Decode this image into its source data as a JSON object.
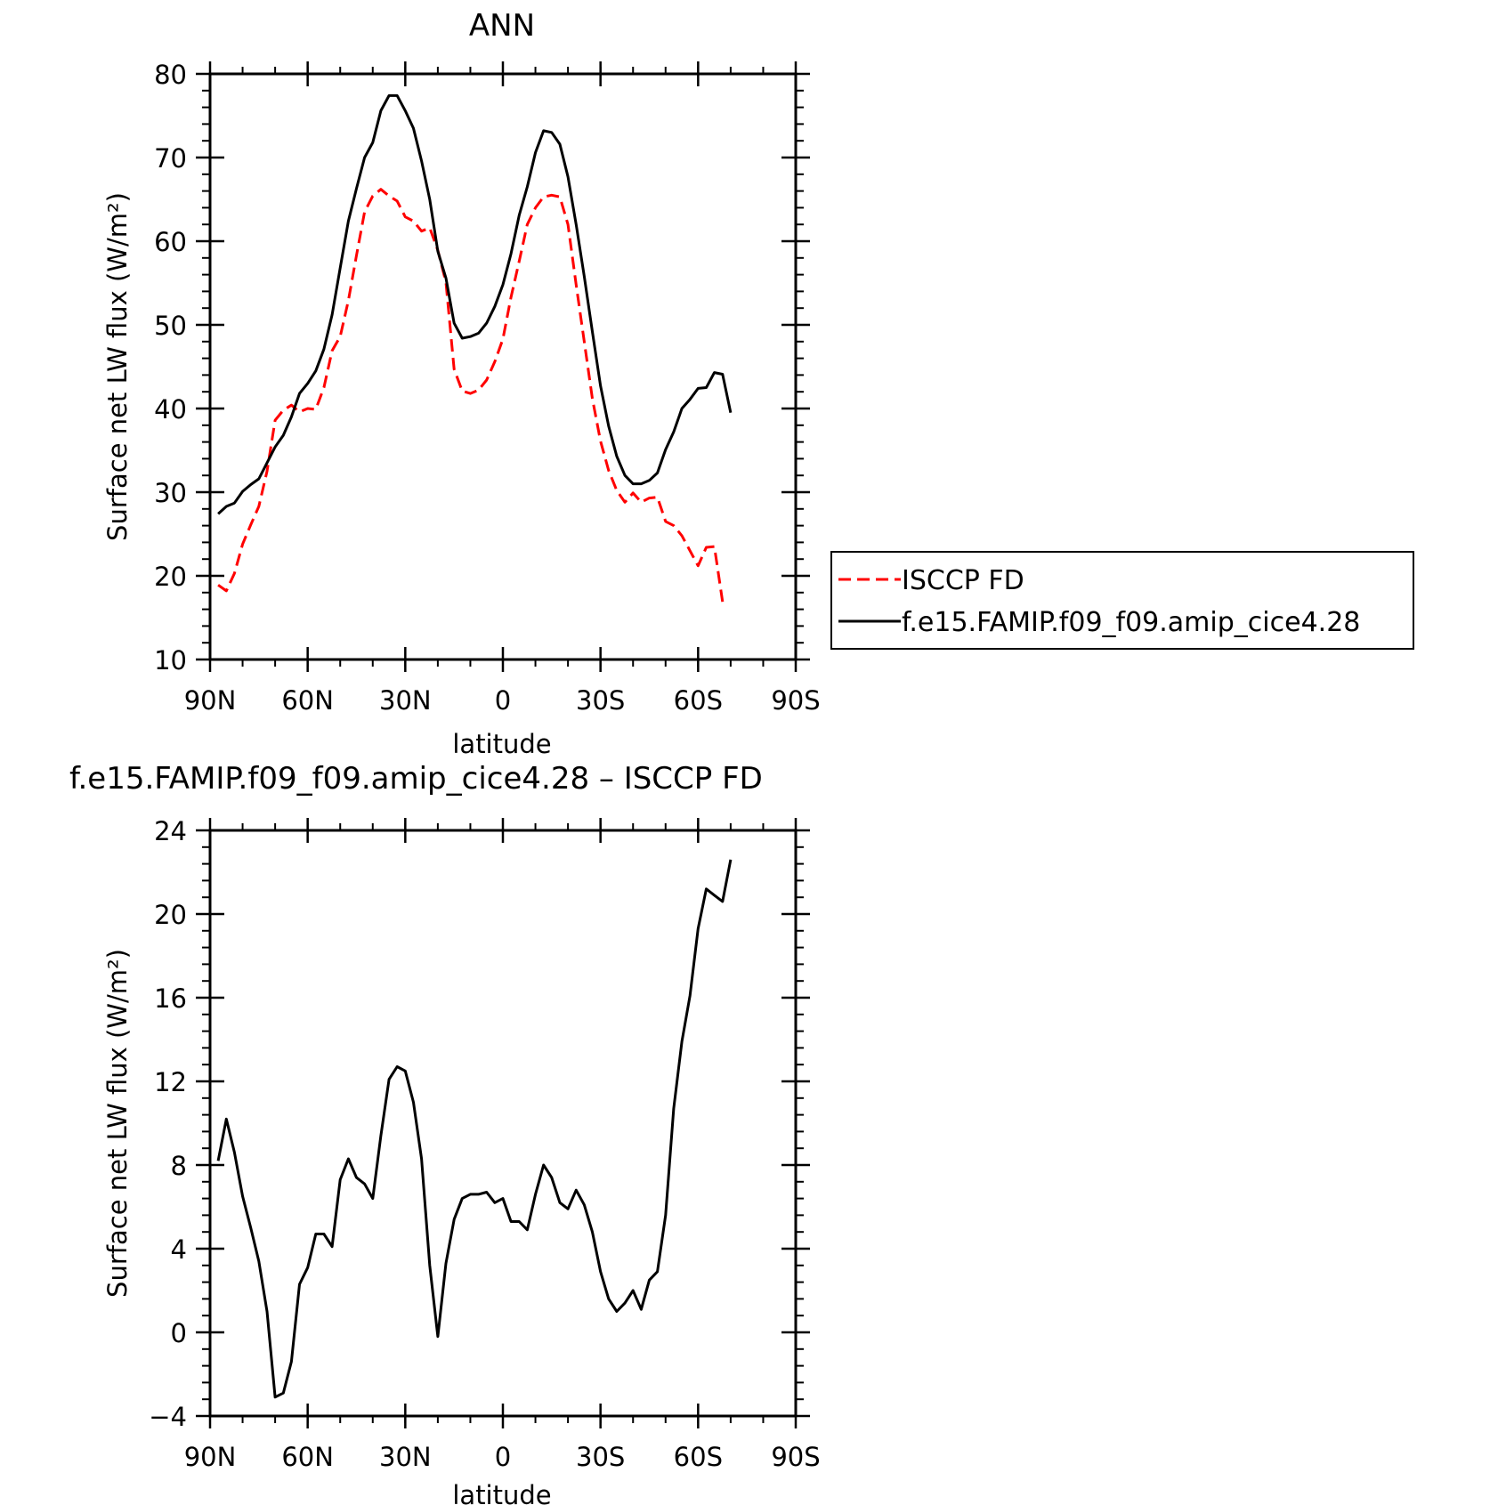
{
  "chart_data": [
    {
      "type": "line",
      "title": "ANN",
      "xlabel": "latitude",
      "ylabel": "Surface net LW flux (W/m²)",
      "ylim": [
        10,
        80
      ],
      "yticks": [
        "80",
        "70",
        "60",
        "50",
        "40",
        "30",
        "20",
        "10"
      ],
      "xlim": [
        90,
        -90
      ],
      "xticks": [
        "90N",
        "60N",
        "30N",
        "0",
        "30S",
        "60S",
        "90S"
      ],
      "legend": "right",
      "series": [
        {
          "name": "ISCCP FD",
          "color": "#ff0000",
          "dash": "dashed",
          "points": [
            [
              87.5,
              18.9
            ],
            [
              85,
              18.2
            ],
            [
              82.5,
              20.3
            ],
            [
              80,
              23.8
            ],
            [
              77.5,
              26.1
            ],
            [
              75,
              28.3
            ],
            [
              72.5,
              32.5
            ],
            [
              70,
              38.6
            ],
            [
              67.5,
              39.8
            ],
            [
              65,
              40.4
            ],
            [
              62.5,
              39.6
            ],
            [
              60,
              40
            ],
            [
              57.5,
              39.9
            ],
            [
              55,
              42.5
            ],
            [
              52.5,
              46.9
            ],
            [
              50,
              48.6
            ],
            [
              47.5,
              52.9
            ],
            [
              45,
              58.3
            ],
            [
              42.5,
              63.5
            ],
            [
              40,
              65.4
            ],
            [
              37.5,
              66.2
            ],
            [
              35,
              65.4
            ],
            [
              32.5,
              64.8
            ],
            [
              30,
              62.9
            ],
            [
              27.5,
              62.4
            ],
            [
              25,
              61.2
            ],
            [
              22.5,
              61.6
            ],
            [
              20,
              58.9
            ],
            [
              17.5,
              55.1
            ],
            [
              15,
              44.7
            ],
            [
              12.5,
              42.1
            ],
            [
              10,
              41.8
            ],
            [
              7.5,
              42.2
            ],
            [
              5,
              43.4
            ],
            [
              2.5,
              45.6
            ],
            [
              0,
              48.3
            ],
            [
              -2.5,
              53.3
            ],
            [
              -5,
              57.6
            ],
            [
              -7.5,
              62
            ],
            [
              -10,
              64
            ],
            [
              -12.5,
              65.3
            ],
            [
              -15,
              65.5
            ],
            [
              -17.5,
              65.3
            ],
            [
              -20,
              62
            ],
            [
              -22.5,
              54.8
            ],
            [
              -25,
              48
            ],
            [
              -27.5,
              41.2
            ],
            [
              -30,
              36.1
            ],
            [
              -32.5,
              32.6
            ],
            [
              -35,
              30.2
            ],
            [
              -37.5,
              28.8
            ],
            [
              -40,
              29.9
            ],
            [
              -42.5,
              28.8
            ],
            [
              -45,
              29.3
            ],
            [
              -47.5,
              29.4
            ],
            [
              -50,
              26.5
            ],
            [
              -52.5,
              26
            ],
            [
              -55,
              24.8
            ],
            [
              -57.5,
              23
            ],
            [
              -60,
              21.2
            ],
            [
              -62.5,
              23.4
            ],
            [
              -65,
              23.5
            ],
            [
              -67.5,
              16.9
            ]
          ]
        },
        {
          "name": "f.e15.FAMIP.f09_f09.amip_cice4.28",
          "color": "#000000",
          "dash": "solid",
          "points": [
            [
              87.5,
              27.4
            ],
            [
              85,
              28.3
            ],
            [
              82.5,
              28.7
            ],
            [
              80,
              30.1
            ],
            [
              77.5,
              30.9
            ],
            [
              75,
              31.6
            ],
            [
              72.5,
              33.5
            ],
            [
              70,
              35.4
            ],
            [
              67.5,
              36.8
            ],
            [
              65,
              39
            ],
            [
              62.5,
              41.8
            ],
            [
              60,
              43
            ],
            [
              57.5,
              44.5
            ],
            [
              55,
              47.1
            ],
            [
              52.5,
              51.2
            ],
            [
              50,
              56.8
            ],
            [
              47.5,
              62.4
            ],
            [
              45,
              66.3
            ],
            [
              42.5,
              70
            ],
            [
              40,
              71.8
            ],
            [
              37.5,
              75.6
            ],
            [
              35,
              77.4
            ],
            [
              32.5,
              77.4
            ],
            [
              30,
              75.6
            ],
            [
              27.5,
              73.5
            ],
            [
              25,
              69.6
            ],
            [
              22.5,
              65
            ],
            [
              20,
              58.8
            ],
            [
              17.5,
              55.6
            ],
            [
              15,
              50.2
            ],
            [
              12.5,
              48.4
            ],
            [
              10,
              48.6
            ],
            [
              7.5,
              49
            ],
            [
              5,
              50.2
            ],
            [
              2.5,
              52.2
            ],
            [
              0,
              54.8
            ],
            [
              -2.5,
              58.5
            ],
            [
              -5,
              63.1
            ],
            [
              -7.5,
              66.5
            ],
            [
              -10,
              70.6
            ],
            [
              -12.5,
              73.2
            ],
            [
              -15,
              73
            ],
            [
              -17.5,
              71.6
            ],
            [
              -20,
              67.7
            ],
            [
              -22.5,
              62
            ],
            [
              -25,
              55.8
            ],
            [
              -27.5,
              49.2
            ],
            [
              -30,
              42.7
            ],
            [
              -32.5,
              37.9
            ],
            [
              -35,
              34.3
            ],
            [
              -37.5,
              32
            ],
            [
              -40,
              31
            ],
            [
              -42.5,
              31
            ],
            [
              -45,
              31.4
            ],
            [
              -47.5,
              32.3
            ],
            [
              -50,
              35.1
            ],
            [
              -52.5,
              37.2
            ],
            [
              -55,
              40
            ],
            [
              -57.5,
              41.1
            ],
            [
              -60,
              42.4
            ],
            [
              -62.5,
              42.5
            ],
            [
              -65,
              44.3
            ],
            [
              -67.5,
              44.1
            ],
            [
              -70,
              39.5
            ]
          ]
        }
      ]
    },
    {
      "type": "line",
      "title": "f.e15.FAMIP.f09_f09.amip_cice4.28 – ISCCP FD",
      "xlabel": "latitude",
      "ylabel": "Surface net LW flux (W/m²)",
      "ylim": [
        -4,
        24
      ],
      "yticks": [
        "24",
        "20",
        "16",
        "12",
        "8",
        "4",
        "0",
        "−4"
      ],
      "xlim": [
        90,
        -90
      ],
      "xticks": [
        "90N",
        "60N",
        "30N",
        "0",
        "30S",
        "60S",
        "90S"
      ],
      "series": [
        {
          "color": "#000000",
          "dash": "solid",
          "points": [
            [
              87.5,
              8.2
            ],
            [
              85,
              10.2
            ],
            [
              82.5,
              8.6
            ],
            [
              80,
              6.5
            ],
            [
              77.5,
              5
            ],
            [
              75,
              3.4
            ],
            [
              72.5,
              1
            ],
            [
              70,
              -3.1
            ],
            [
              67.5,
              -2.9
            ],
            [
              65,
              -1.4
            ],
            [
              62.5,
              2.3
            ],
            [
              60,
              3.1
            ],
            [
              57.5,
              4.7
            ],
            [
              55,
              4.7
            ],
            [
              52.5,
              4.1
            ],
            [
              50,
              7.3
            ],
            [
              47.5,
              8.3
            ],
            [
              45,
              7.4
            ],
            [
              42.5,
              7.1
            ],
            [
              40,
              6.4
            ],
            [
              37.5,
              9.4
            ],
            [
              35,
              12.1
            ],
            [
              32.5,
              12.7
            ],
            [
              30,
              12.5
            ],
            [
              27.5,
              11
            ],
            [
              25,
              8.3
            ],
            [
              22.5,
              3.2
            ],
            [
              20,
              -0.2
            ],
            [
              17.5,
              3.3
            ],
            [
              15,
              5.4
            ],
            [
              12.5,
              6.4
            ],
            [
              10,
              6.6
            ],
            [
              7.5,
              6.6
            ],
            [
              5,
              6.7
            ],
            [
              2.5,
              6.2
            ],
            [
              0,
              6.4
            ],
            [
              -2.5,
              5.3
            ],
            [
              -5,
              5.3
            ],
            [
              -7.5,
              4.9
            ],
            [
              -10,
              6.6
            ],
            [
              -12.5,
              8
            ],
            [
              -15,
              7.4
            ],
            [
              -17.5,
              6.2
            ],
            [
              -20,
              5.9
            ],
            [
              -22.5,
              6.8
            ],
            [
              -25,
              6.1
            ],
            [
              -27.5,
              4.8
            ],
            [
              -30,
              2.9
            ],
            [
              -32.5,
              1.6
            ],
            [
              -35,
              1
            ],
            [
              -37.5,
              1.4
            ],
            [
              -40,
              2
            ],
            [
              -42.5,
              1.1
            ],
            [
              -45,
              2.5
            ],
            [
              -47.5,
              2.9
            ],
            [
              -50,
              5.6
            ],
            [
              -52.5,
              10.7
            ],
            [
              -55,
              13.9
            ],
            [
              -57.5,
              16.1
            ],
            [
              -60,
              19.3
            ],
            [
              -62.5,
              21.2
            ],
            [
              -65,
              20.9
            ],
            [
              -67.5,
              20.6
            ],
            [
              -70,
              22.6
            ]
          ]
        }
      ]
    }
  ]
}
